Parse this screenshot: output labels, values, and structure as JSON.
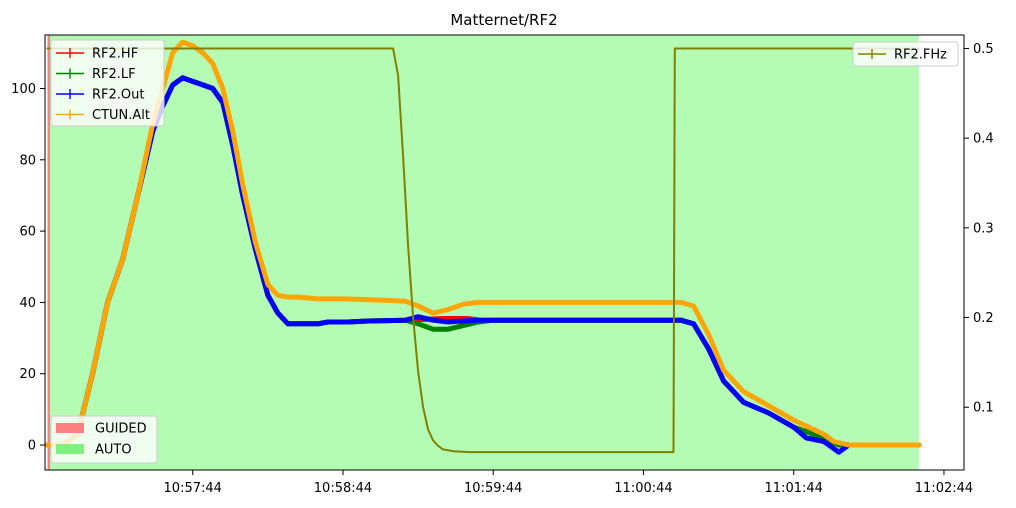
{
  "chart_data": {
    "type": "line",
    "title": "Matternet/RF2",
    "xlabel": "",
    "ylabel": "",
    "y2label": "",
    "x_ticks": [
      "10:57:44",
      "10:58:44",
      "10:59:44",
      "11:00:44",
      "11:01:44",
      "11:02:44"
    ],
    "x_tick_seconds": [
      0,
      60,
      120,
      180,
      240,
      300
    ],
    "xlim_seconds": [
      -59,
      308
    ],
    "ylim": [
      -7,
      115
    ],
    "y_ticks": [
      0,
      20,
      40,
      60,
      80,
      100
    ],
    "y2lim": [
      0.03,
      0.515
    ],
    "y2_ticks": [
      "0.1",
      "0.2",
      "0.3",
      "0.4",
      "0.5"
    ],
    "y2_tick_values": [
      0.1,
      0.2,
      0.3,
      0.4,
      0.5
    ],
    "grid": false,
    "legend_left": "top-left",
    "legend_right": "top-right",
    "legend_modes": "bottom-left",
    "modes": [
      {
        "name": "GUIDED",
        "start": -58,
        "end": -57,
        "color": "#ff8080"
      },
      {
        "name": "AUTO",
        "start": -57,
        "end": 290,
        "color": "#b4fbb4"
      }
    ],
    "series": [
      {
        "name": "RF2.HF",
        "axis": "left",
        "color": "#ff0000",
        "x": [
          -58,
          -52,
          -46,
          -40,
          -34,
          -28,
          -22,
          -16,
          -12,
          -8,
          -4,
          0,
          4,
          8,
          12,
          16,
          20,
          25,
          30,
          34,
          38,
          42,
          46,
          50,
          54,
          58,
          62,
          70,
          85,
          100,
          110,
          115,
          120,
          140,
          160,
          180,
          190,
          195,
          200,
          206,
          212,
          220,
          230,
          240,
          252,
          258,
          262,
          270,
          280,
          290
        ],
        "y": [
          0,
          0,
          3,
          20,
          40,
          52,
          70,
          88,
          95,
          101,
          103,
          102,
          101,
          100,
          96,
          84,
          70,
          55,
          42,
          37,
          34,
          34,
          34,
          34,
          34.5,
          34.5,
          34.5,
          34.8,
          35,
          35.5,
          35.5,
          35,
          35,
          35,
          35,
          35,
          35,
          35,
          34,
          27,
          18,
          12,
          9,
          5,
          2,
          0,
          0,
          0,
          0,
          0
        ]
      },
      {
        "name": "RF2.LF",
        "axis": "left",
        "color": "#008000",
        "x": [
          -58,
          -52,
          -46,
          -40,
          -34,
          -28,
          -22,
          -16,
          -12,
          -8,
          -4,
          0,
          4,
          8,
          12,
          16,
          20,
          25,
          30,
          34,
          38,
          42,
          46,
          50,
          54,
          58,
          62,
          70,
          85,
          90,
          96,
          102,
          108,
          114,
          120,
          140,
          160,
          180,
          190,
          195,
          200,
          206,
          212,
          220,
          230,
          240,
          252,
          258,
          262,
          270,
          280,
          290
        ],
        "y": [
          0,
          0,
          3,
          20,
          40,
          52,
          70,
          88,
          95,
          101,
          103,
          102,
          101,
          100,
          96,
          84,
          70,
          55,
          42,
          37,
          34,
          34,
          34,
          34,
          34.5,
          34.5,
          34.5,
          34.8,
          35,
          34,
          32.5,
          32.5,
          33.5,
          34.5,
          35,
          35,
          35,
          35,
          35,
          35,
          34,
          27,
          18,
          12,
          9,
          5,
          2,
          0,
          0,
          0,
          0,
          0
        ]
      },
      {
        "name": "RF2.Out",
        "axis": "left",
        "color": "#0000ff",
        "x": [
          -58,
          -52,
          -46,
          -40,
          -34,
          -28,
          -22,
          -16,
          -12,
          -8,
          -4,
          0,
          4,
          8,
          12,
          16,
          20,
          25,
          30,
          34,
          38,
          42,
          46,
          50,
          54,
          58,
          62,
          70,
          85,
          90,
          96,
          102,
          108,
          114,
          120,
          140,
          160,
          180,
          190,
          195,
          200,
          206,
          212,
          220,
          230,
          240,
          245,
          252,
          258,
          262,
          270,
          280,
          290
        ],
        "y": [
          0,
          0,
          3,
          20,
          40,
          52,
          70,
          88,
          95,
          101,
          103,
          102,
          101,
          100,
          96,
          84,
          70,
          55,
          42,
          37,
          34,
          34,
          34,
          34,
          34.5,
          34.5,
          34.5,
          34.8,
          35,
          36,
          35,
          34.5,
          34.8,
          35,
          35,
          35,
          35,
          35,
          35,
          35,
          34,
          27,
          18,
          12,
          9,
          5,
          2,
          1,
          -2,
          0,
          0,
          0,
          0
        ]
      },
      {
        "name": "CTUN.Alt",
        "axis": "left",
        "color": "#ffa500",
        "x": [
          -58,
          -52,
          -46,
          -40,
          -34,
          -28,
          -22,
          -16,
          -12,
          -8,
          -4,
          0,
          4,
          8,
          12,
          16,
          20,
          25,
          30,
          34,
          38,
          42,
          50,
          60,
          70,
          80,
          85,
          90,
          96,
          102,
          108,
          114,
          120,
          140,
          160,
          180,
          190,
          195,
          200,
          206,
          212,
          220,
          230,
          240,
          252,
          256,
          262,
          270,
          280,
          290
        ],
        "y": [
          0,
          0,
          3,
          20,
          40,
          52,
          70,
          90,
          100,
          110,
          113,
          112,
          110,
          107,
          100,
          88,
          73,
          57,
          45,
          42,
          41.5,
          41.5,
          41,
          41,
          40.8,
          40.5,
          40.3,
          39,
          37,
          38,
          39.5,
          40,
          40,
          40,
          40,
          40,
          40,
          40,
          39,
          31,
          21,
          15,
          11,
          7,
          3,
          1,
          0,
          0,
          0,
          0
        ]
      },
      {
        "name": "RF2.FHz",
        "axis": "right",
        "color": "#808000",
        "x": [
          -58,
          80,
          82,
          84,
          86,
          88,
          90,
          92,
          94,
          96,
          98,
          100,
          104,
          110,
          120,
          140,
          160,
          180,
          190,
          192,
          192.5,
          200,
          220,
          240,
          260,
          280,
          290
        ],
        "y": [
          0.5,
          0.5,
          0.47,
          0.38,
          0.28,
          0.2,
          0.14,
          0.1,
          0.075,
          0.063,
          0.057,
          0.053,
          0.051,
          0.05,
          0.05,
          0.05,
          0.05,
          0.05,
          0.05,
          0.05,
          0.5,
          0.5,
          0.5,
          0.5,
          0.5,
          0.5,
          0.5
        ]
      }
    ]
  }
}
